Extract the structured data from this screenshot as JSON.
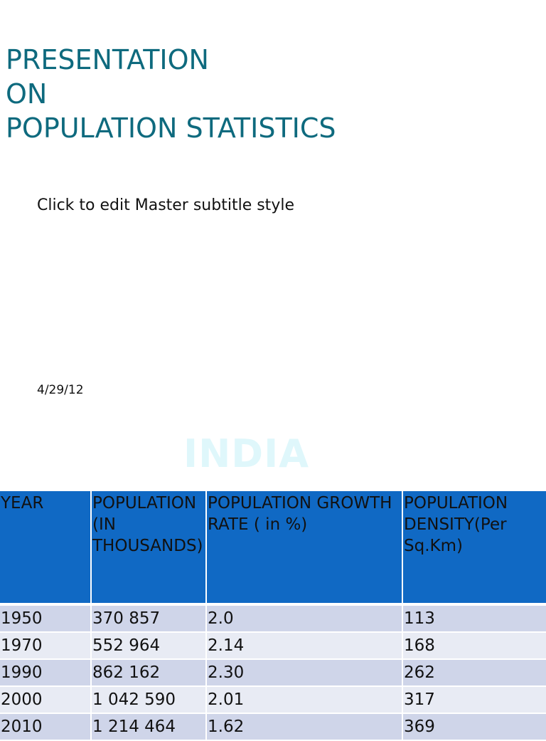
{
  "slide": {
    "title_lines": [
      "PRESENTATION",
      "ON",
      "POPULATION STATISTICS"
    ],
    "subtitle": "Click to edit Master subtitle style",
    "date": "4/29/12"
  },
  "section": {
    "heading": "INDIA"
  },
  "table": {
    "headers": [
      "YEAR",
      "POPULATION (IN THOUSANDS)",
      "POPULATION GROWTH  RATE ( in %)",
      "POPULATION DENSITY(Per Sq.Km)"
    ],
    "rows": [
      [
        "1950",
        "370 857",
        "2.0",
        "113"
      ],
      [
        "1970",
        "552 964",
        "2.14",
        "168"
      ],
      [
        "1990",
        "862 162",
        "2.30",
        "262"
      ],
      [
        "2000",
        "1 042 590",
        "2.01",
        "317"
      ],
      [
        "2010",
        "1 214 464",
        "1.62",
        "369"
      ]
    ]
  },
  "colors": {
    "title": "#0e6a7e",
    "header_bg": "#1069c4",
    "row_odd": "#cfd5e9",
    "row_even": "#e8ebf4",
    "heading": "#dff7fb"
  }
}
